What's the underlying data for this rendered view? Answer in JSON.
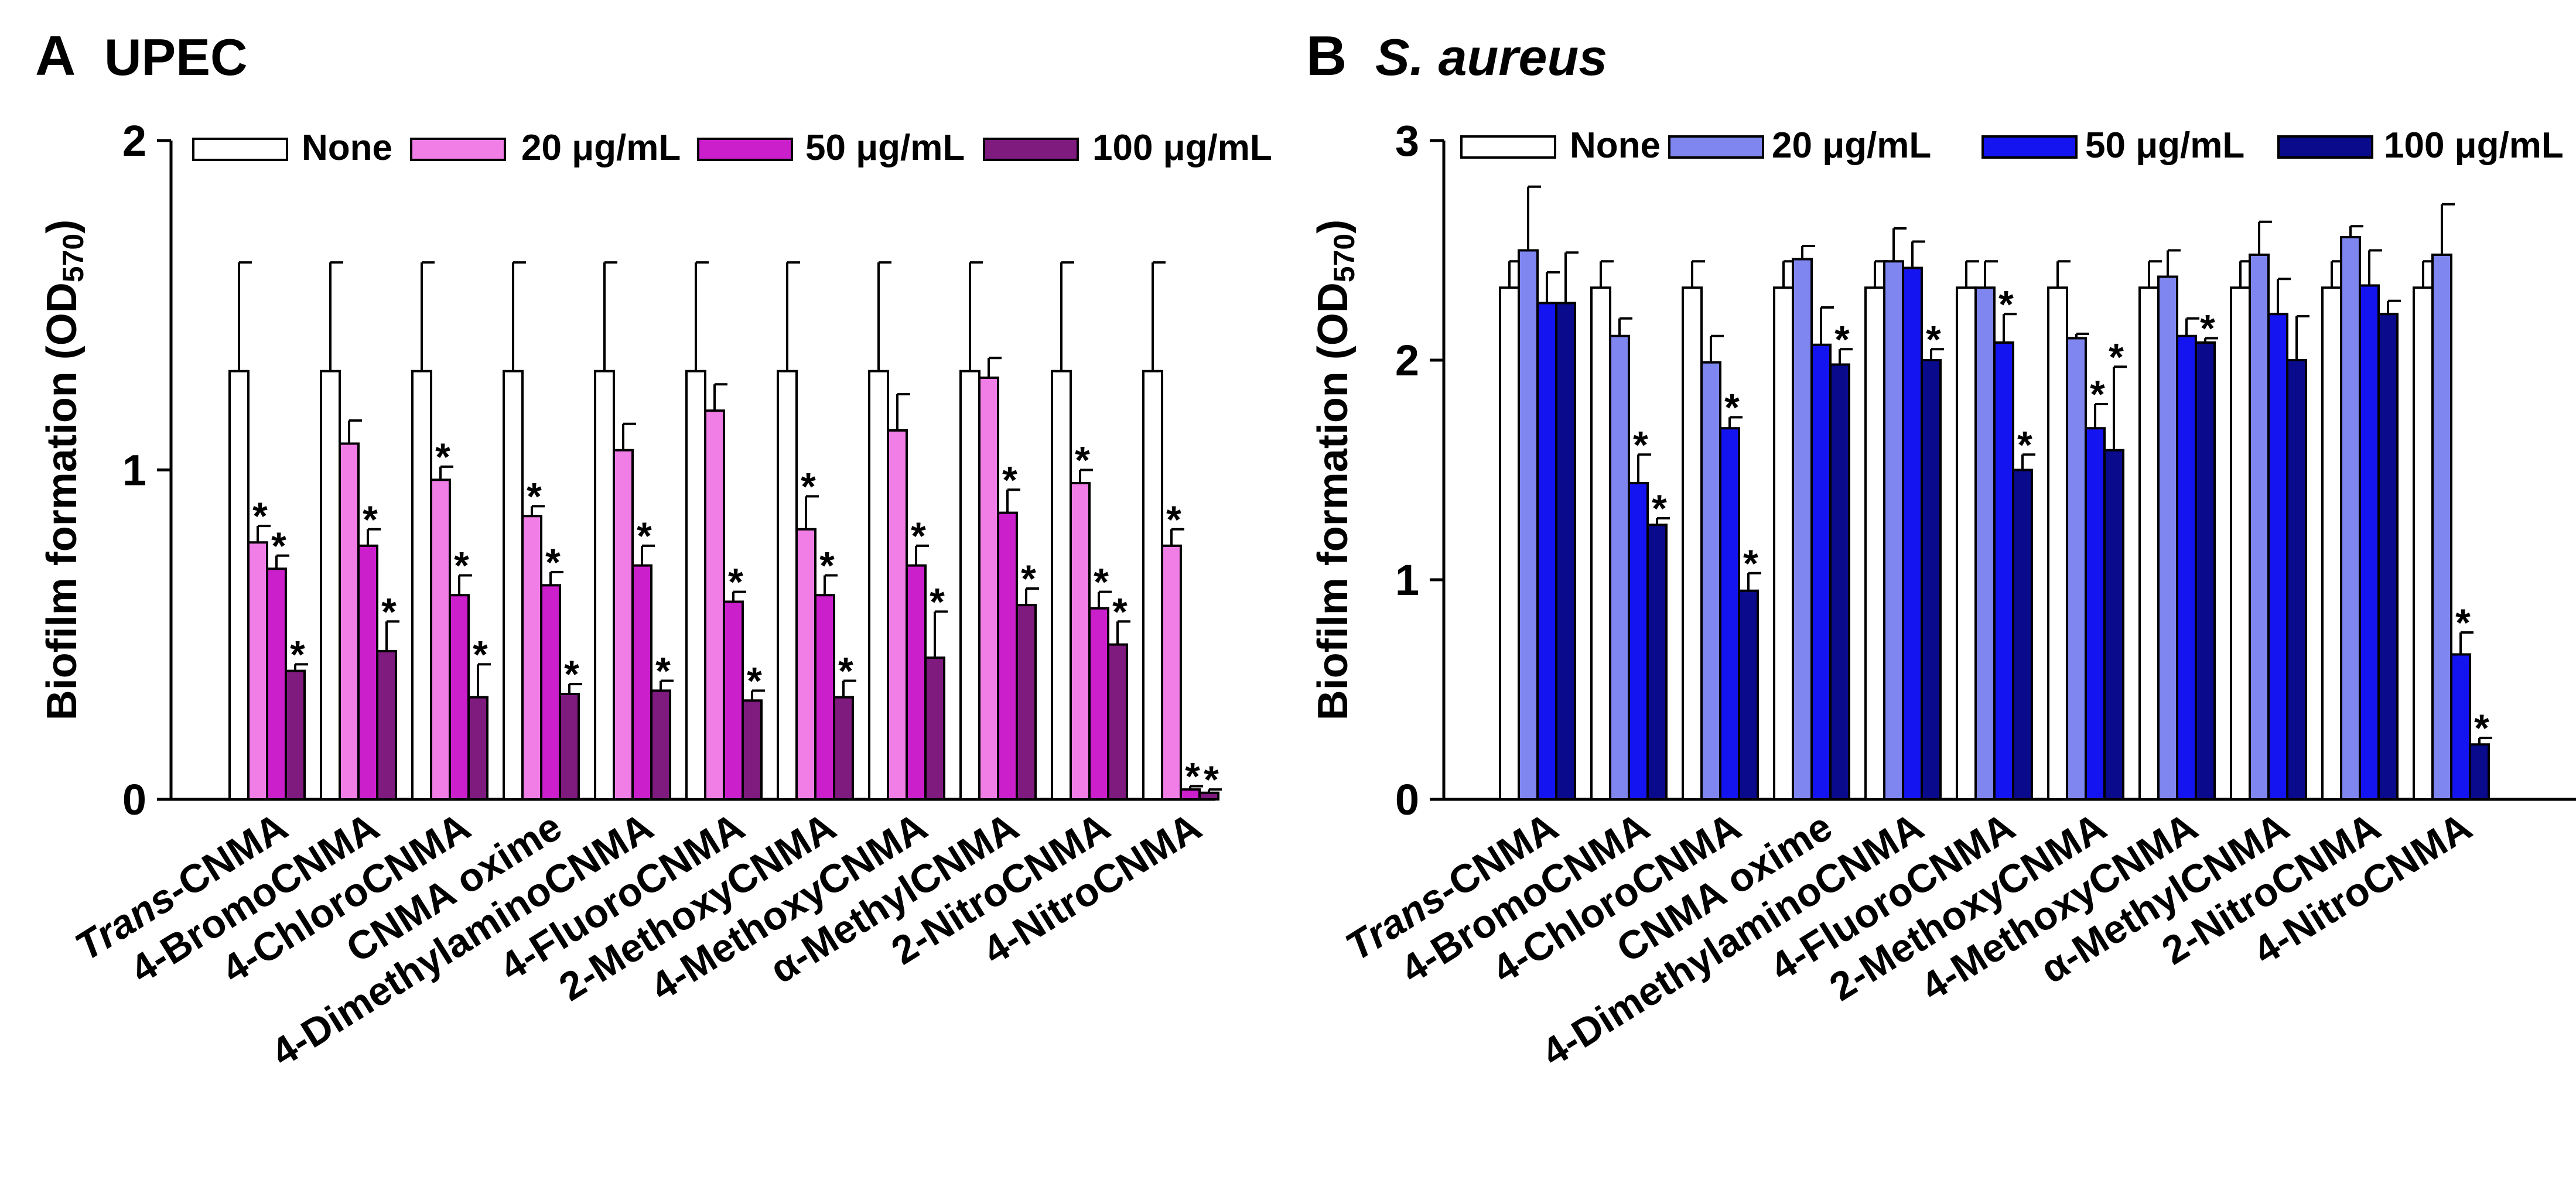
{
  "chart_data": [
    {
      "type": "bar",
      "panel_letter": "A",
      "title": "UPEC",
      "title_italic": false,
      "ylabel": "Biofilm formation (OD570)",
      "ylabel_main": "Biofilm formation (OD",
      "ylabel_sub": "570",
      "ylabel_close": ")",
      "xlabel": "",
      "ylim": [
        0,
        2
      ],
      "yticks": [
        0,
        1,
        2
      ],
      "grid": false,
      "legend_position": "top",
      "categories": [
        {
          "italic": "Trans",
          "rest": "-CNMA"
        },
        {
          "italic": "",
          "rest": "4-BromoCNMA"
        },
        {
          "italic": "",
          "rest": "4-ChloroCNMA"
        },
        {
          "italic": "",
          "rest": "CNMA oxime"
        },
        {
          "italic": "",
          "rest": "4-DimethylaminoCNMA"
        },
        {
          "italic": "",
          "rest": "4-FluoroCNMA"
        },
        {
          "italic": "",
          "rest": "2-MethoxyCNMA"
        },
        {
          "italic": "",
          "rest": "4-MethoxyCNMA"
        },
        {
          "italic": "",
          "rest": "α-MethylCNMA"
        },
        {
          "italic": "",
          "rest": "2-NitroCNMA"
        },
        {
          "italic": "",
          "rest": "4-NitroCNMA"
        }
      ],
      "series": [
        {
          "name": "None",
          "color": "#ffffff",
          "values": [
            1.3,
            1.3,
            1.3,
            1.3,
            1.3,
            1.3,
            1.3,
            1.3,
            1.3,
            1.3,
            1.3
          ],
          "errors": [
            0.33,
            0.33,
            0.33,
            0.33,
            0.33,
            0.33,
            0.33,
            0.33,
            0.33,
            0.33,
            0.33
          ],
          "sig": [
            false,
            false,
            false,
            false,
            false,
            false,
            false,
            false,
            false,
            false,
            false
          ]
        },
        {
          "name": "20 μg/mL",
          "color": "#f07ee6",
          "values": [
            0.78,
            1.08,
            0.97,
            0.86,
            1.06,
            1.18,
            0.82,
            1.12,
            1.28,
            0.96,
            0.77
          ],
          "errors": [
            0.05,
            0.07,
            0.04,
            0.03,
            0.08,
            0.08,
            0.1,
            0.11,
            0.06,
            0.04,
            0.05
          ],
          "sig": [
            true,
            false,
            true,
            true,
            false,
            false,
            true,
            false,
            false,
            true,
            true
          ]
        },
        {
          "name": "50 μg/mL",
          "color": "#cc1fcc",
          "values": [
            0.7,
            0.77,
            0.62,
            0.65,
            0.71,
            0.6,
            0.62,
            0.71,
            0.87,
            0.58,
            0.03
          ],
          "errors": [
            0.04,
            0.05,
            0.06,
            0.04,
            0.06,
            0.03,
            0.06,
            0.06,
            0.07,
            0.05,
            0.01
          ],
          "sig": [
            true,
            true,
            true,
            true,
            true,
            true,
            true,
            true,
            true,
            true,
            true
          ]
        },
        {
          "name": "100 μg/mL",
          "color": "#7f1a7f",
          "values": [
            0.39,
            0.45,
            0.31,
            0.32,
            0.33,
            0.3,
            0.31,
            0.43,
            0.59,
            0.47,
            0.02
          ],
          "errors": [
            0.02,
            0.09,
            0.1,
            0.03,
            0.03,
            0.03,
            0.05,
            0.14,
            0.05,
            0.07,
            0.01
          ],
          "sig": [
            true,
            true,
            true,
            true,
            true,
            true,
            true,
            true,
            true,
            true,
            true
          ]
        }
      ]
    },
    {
      "type": "bar",
      "panel_letter": "B",
      "title": "S. aureus",
      "title_italic": true,
      "ylabel": "Biofilm formation (OD570)",
      "ylabel_main": "Biofilm formation (OD",
      "ylabel_sub": "570",
      "ylabel_close": ")",
      "xlabel": "",
      "ylim": [
        0,
        3
      ],
      "yticks": [
        0,
        1,
        2,
        3
      ],
      "grid": false,
      "legend_position": "top",
      "categories": [
        {
          "italic": "Trans",
          "rest": "-CNMA"
        },
        {
          "italic": "",
          "rest": "4-BromoCNMA"
        },
        {
          "italic": "",
          "rest": "4-ChloroCNMA"
        },
        {
          "italic": "",
          "rest": "CNMA oxime"
        },
        {
          "italic": "",
          "rest": "4-DimethylaminoCNMA"
        },
        {
          "italic": "",
          "rest": "4-FluoroCNMA"
        },
        {
          "italic": "",
          "rest": "2-MethoxyCNMA"
        },
        {
          "italic": "",
          "rest": "4-MethoxyCNMA"
        },
        {
          "italic": "",
          "rest": "α-MethylCNMA"
        },
        {
          "italic": "",
          "rest": "2-NitroCNMA"
        },
        {
          "italic": "",
          "rest": "4-NitroCNMA"
        }
      ],
      "series": [
        {
          "name": "None",
          "color": "#ffffff",
          "values": [
            2.33,
            2.33,
            2.33,
            2.33,
            2.33,
            2.33,
            2.33,
            2.33,
            2.33,
            2.33,
            2.33
          ],
          "errors": [
            0.12,
            0.12,
            0.12,
            0.12,
            0.12,
            0.12,
            0.12,
            0.12,
            0.12,
            0.12,
            0.12
          ],
          "sig": [
            false,
            false,
            false,
            false,
            false,
            false,
            false,
            false,
            false,
            false,
            false
          ]
        },
        {
          "name": "20 μg/mL",
          "color": "#7f86f0",
          "values": [
            2.5,
            2.11,
            1.99,
            2.46,
            2.45,
            2.33,
            2.1,
            2.38,
            2.48,
            2.56,
            2.48
          ],
          "errors": [
            0.29,
            0.08,
            0.12,
            0.06,
            0.15,
            0.12,
            0.02,
            0.12,
            0.15,
            0.05,
            0.23
          ],
          "sig": [
            false,
            false,
            false,
            false,
            false,
            false,
            false,
            false,
            false,
            false,
            false
          ]
        },
        {
          "name": "50 μg/mL",
          "color": "#1414f0",
          "values": [
            2.26,
            1.44,
            1.69,
            2.07,
            2.42,
            2.08,
            1.69,
            2.11,
            2.21,
            2.34,
            0.66
          ],
          "errors": [
            0.14,
            0.13,
            0.05,
            0.17,
            0.12,
            0.13,
            0.11,
            0.08,
            0.16,
            0.16,
            0.1
          ],
          "sig": [
            false,
            true,
            true,
            false,
            false,
            true,
            true,
            false,
            false,
            false,
            true
          ]
        },
        {
          "name": "100 μg/mL",
          "color": "#0a0a8c",
          "values": [
            2.26,
            1.25,
            0.95,
            1.98,
            2.0,
            1.5,
            1.59,
            2.08,
            2.0,
            2.21,
            0.25
          ],
          "errors": [
            0.23,
            0.03,
            0.08,
            0.07,
            0.05,
            0.07,
            0.38,
            0.02,
            0.2,
            0.06,
            0.03
          ],
          "sig": [
            false,
            true,
            true,
            true,
            true,
            true,
            true,
            true,
            false,
            false,
            true
          ]
        }
      ]
    }
  ]
}
